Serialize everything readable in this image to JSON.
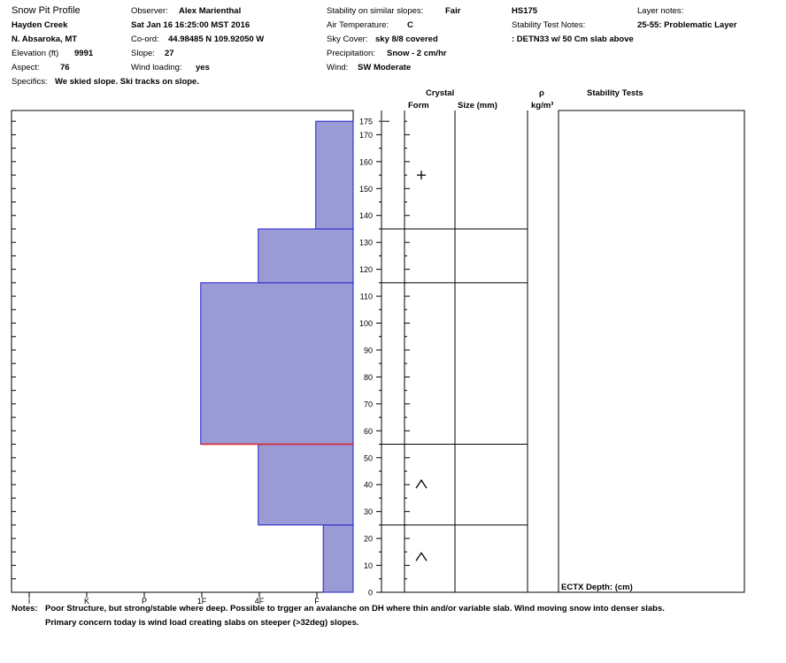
{
  "header": {
    "title": "Snow Pit Profile",
    "location": "Hayden Creek",
    "range": "N. Absaroka, MT",
    "elevation_label": "Elevation (ft)",
    "elevation_value": "9991",
    "aspect_label": "Aspect:",
    "aspect_value": "76",
    "specifics_label": "Specifics:",
    "specifics_value": "We skied slope. Ski tracks on slope.",
    "observer_label": "Observer:",
    "observer_value": "Alex Marienthal",
    "datetime": "Sat Jan 16 16:25:00 MST 2016",
    "coord_label": "Co-ord:",
    "coord_value": "44.98485 N 109.92050 W",
    "slope_label": "Slope:",
    "slope_value": "27",
    "wind_loading_label": "Wind loading:",
    "wind_loading_value": "yes",
    "stability_label": "Stability on similar slopes:",
    "stability_value": "Fair",
    "air_temp_label": "Air Temperature:",
    "air_temp_value": "C",
    "sky_label": "Sky Cover:",
    "sky_value": "sky 8/8 covered",
    "precip_label": "Precipitation:",
    "precip_value": "Snow - 2 cm/hr",
    "wind_label": "Wind:",
    "wind_value": "SW Moderate",
    "hs": "HS175",
    "stability_notes_label": "Stability Test Notes:",
    "stability_notes_value": ": DETN33 w/ 50 Cm slab above",
    "layer_notes_label": "Layer notes:",
    "layer_notes_value": "25-55: Problematic Layer"
  },
  "columns": {
    "crystal": "Crystal",
    "form": "Form",
    "size": "Size (mm)",
    "rho": "ρ",
    "density_unit": "kg/m³",
    "stability_tests": "Stability Tests",
    "stability_test_entry": "ECTX  Depth: (cm)"
  },
  "notes": {
    "label": "Notes:",
    "line1": "Poor Structure, but strong/stable where deep. Possible to trgger an avalanche on DH where thin and/or variable slab. Wind moving snow into denser slabs.",
    "line2": "Primary concern today is wind load creating slabs on steeper (>32deg) slopes."
  },
  "colors": {
    "layer_fill": "#9a9ad5",
    "layer_edge": "#2020d0",
    "weak_layer": "#e02020"
  },
  "chart_data": {
    "type": "bar",
    "orientation": "horizontal-steps",
    "hardness_ticks": [
      "I",
      "K",
      "P",
      "1F",
      "4F",
      "F"
    ],
    "height_axis": {
      "min": 0,
      "max": 175,
      "major_step": 10,
      "tick_labels": [
        0,
        10,
        20,
        30,
        40,
        50,
        60,
        70,
        80,
        90,
        100,
        110,
        120,
        130,
        140,
        150,
        160,
        170,
        175
      ]
    },
    "layers": [
      {
        "bottom": 0,
        "top": 25,
        "hardness": "F+",
        "hardness_index": 0.52,
        "grain": "^"
      },
      {
        "bottom": 25,
        "top": 55,
        "hardness": "4F",
        "hardness_index": 1.65,
        "grain": "^"
      },
      {
        "bottom": 55,
        "top": 115,
        "hardness": "1F",
        "hardness_index": 2.65,
        "grain": ""
      },
      {
        "bottom": 115,
        "top": 135,
        "hardness": "4F",
        "hardness_index": 1.65,
        "grain": "+"
      },
      {
        "bottom": 135,
        "top": 175,
        "hardness": "F",
        "hardness_index": 0.65,
        "grain": ""
      }
    ],
    "weak_layer_height": 55,
    "grain_symbols": [
      {
        "height": 155,
        "symbol": "+"
      },
      {
        "height": 40,
        "symbol": "^"
      },
      {
        "height": 13,
        "symbol": "^"
      }
    ],
    "surface_marker": 175
  }
}
